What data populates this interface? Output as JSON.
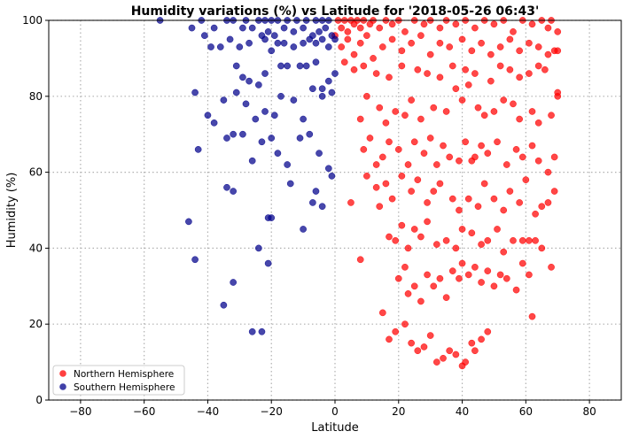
{
  "chart_data": {
    "type": "scatter",
    "title": "Humidity variations (%) vs Latitude for '2018-05-26 06:43'",
    "xlabel": "Latitude",
    "ylabel": "Humidity (%)",
    "xlim": [
      -90,
      90
    ],
    "ylim": [
      0,
      100
    ],
    "xticks": [
      -80,
      -60,
      -40,
      -20,
      0,
      20,
      40,
      60,
      80
    ],
    "yticks": [
      0,
      20,
      40,
      60,
      80,
      100
    ],
    "grid": "dotted",
    "legend_position": "lower-left",
    "series": [
      {
        "name": "Northern Hemisphere",
        "color": "#ff0000",
        "points": [
          [
            1,
            100
          ],
          [
            2,
            98
          ],
          [
            3,
            100
          ],
          [
            4,
            97
          ],
          [
            5,
            100
          ],
          [
            6,
            99
          ],
          [
            7,
            100
          ],
          [
            8,
            98
          ],
          [
            9,
            100
          ],
          [
            11,
            99
          ],
          [
            12,
            100
          ],
          [
            14,
            98
          ],
          [
            16,
            100
          ],
          [
            18,
            99
          ],
          [
            20,
            100
          ],
          [
            22,
            97
          ],
          [
            25,
            100
          ],
          [
            28,
            99
          ],
          [
            30,
            100
          ],
          [
            33,
            98
          ],
          [
            35,
            100
          ],
          [
            38,
            99
          ],
          [
            41,
            100
          ],
          [
            44,
            98
          ],
          [
            47,
            100
          ],
          [
            50,
            99
          ],
          [
            53,
            100
          ],
          [
            56,
            97
          ],
          [
            59,
            100
          ],
          [
            62,
            99
          ],
          [
            65,
            100
          ],
          [
            67,
            98
          ],
          [
            68,
            100
          ],
          [
            70,
            97
          ],
          [
            0,
            96
          ],
          [
            2,
            93
          ],
          [
            4,
            95
          ],
          [
            6,
            91
          ],
          [
            8,
            94
          ],
          [
            10,
            96
          ],
          [
            12,
            90
          ],
          [
            15,
            93
          ],
          [
            18,
            95
          ],
          [
            21,
            92
          ],
          [
            24,
            94
          ],
          [
            27,
            96
          ],
          [
            30,
            91
          ],
          [
            33,
            94
          ],
          [
            36,
            93
          ],
          [
            40,
            95
          ],
          [
            43,
            92
          ],
          [
            46,
            94
          ],
          [
            49,
            91
          ],
          [
            52,
            93
          ],
          [
            55,
            95
          ],
          [
            58,
            92
          ],
          [
            61,
            94
          ],
          [
            64,
            93
          ],
          [
            67,
            91
          ],
          [
            69,
            92
          ],
          [
            70,
            92
          ],
          [
            3,
            89
          ],
          [
            6,
            87
          ],
          [
            9,
            88
          ],
          [
            13,
            86
          ],
          [
            17,
            85
          ],
          [
            21,
            88
          ],
          [
            26,
            87
          ],
          [
            29,
            86
          ],
          [
            33,
            85
          ],
          [
            37,
            88
          ],
          [
            41,
            87
          ],
          [
            44,
            86
          ],
          [
            49,
            84
          ],
          [
            52,
            88
          ],
          [
            55,
            87
          ],
          [
            58,
            85
          ],
          [
            61,
            86
          ],
          [
            64,
            88
          ],
          [
            66,
            87
          ],
          [
            8,
            74
          ],
          [
            10,
            80
          ],
          [
            14,
            77
          ],
          [
            16,
            73
          ],
          [
            19,
            76
          ],
          [
            22,
            75
          ],
          [
            24,
            79
          ],
          [
            27,
            74
          ],
          [
            31,
            77
          ],
          [
            35,
            76
          ],
          [
            38,
            82
          ],
          [
            40,
            79
          ],
          [
            42,
            83
          ],
          [
            45,
            77
          ],
          [
            47,
            75
          ],
          [
            50,
            76
          ],
          [
            53,
            79
          ],
          [
            56,
            78
          ],
          [
            58,
            74
          ],
          [
            62,
            76
          ],
          [
            64,
            73
          ],
          [
            68,
            75
          ],
          [
            70,
            80
          ],
          [
            70,
            81
          ],
          [
            9,
            66
          ],
          [
            11,
            69
          ],
          [
            13,
            62
          ],
          [
            15,
            64
          ],
          [
            17,
            68
          ],
          [
            20,
            66
          ],
          [
            23,
            62
          ],
          [
            25,
            68
          ],
          [
            28,
            65
          ],
          [
            30,
            69
          ],
          [
            32,
            62
          ],
          [
            34,
            67
          ],
          [
            36,
            64
          ],
          [
            39,
            63
          ],
          [
            41,
            68
          ],
          [
            43,
            63
          ],
          [
            44,
            64
          ],
          [
            46,
            67
          ],
          [
            48,
            65
          ],
          [
            51,
            68
          ],
          [
            54,
            62
          ],
          [
            57,
            66
          ],
          [
            59,
            64
          ],
          [
            62,
            67
          ],
          [
            64,
            63
          ],
          [
            67,
            60
          ],
          [
            69,
            64
          ],
          [
            5,
            52
          ],
          [
            10,
            59
          ],
          [
            13,
            56
          ],
          [
            14,
            51
          ],
          [
            16,
            57
          ],
          [
            18,
            53
          ],
          [
            21,
            59
          ],
          [
            24,
            55
          ],
          [
            26,
            58
          ],
          [
            29,
            52
          ],
          [
            31,
            55
          ],
          [
            33,
            57
          ],
          [
            37,
            53
          ],
          [
            39,
            50
          ],
          [
            42,
            53
          ],
          [
            45,
            51
          ],
          [
            47,
            57
          ],
          [
            50,
            53
          ],
          [
            53,
            50
          ],
          [
            55,
            55
          ],
          [
            58,
            52
          ],
          [
            60,
            58
          ],
          [
            63,
            49
          ],
          [
            65,
            51
          ],
          [
            67,
            52
          ],
          [
            69,
            55
          ],
          [
            8,
            37
          ],
          [
            17,
            43
          ],
          [
            19,
            42
          ],
          [
            21,
            46
          ],
          [
            23,
            40
          ],
          [
            25,
            45
          ],
          [
            27,
            43
          ],
          [
            29,
            47
          ],
          [
            32,
            41
          ],
          [
            35,
            42
          ],
          [
            38,
            40
          ],
          [
            40,
            45
          ],
          [
            43,
            44
          ],
          [
            46,
            41
          ],
          [
            48,
            42
          ],
          [
            51,
            45
          ],
          [
            53,
            39
          ],
          [
            56,
            42
          ],
          [
            59,
            42
          ],
          [
            61,
            42
          ],
          [
            63,
            42
          ],
          [
            65,
            40
          ],
          [
            68,
            35
          ],
          [
            20,
            32
          ],
          [
            22,
            35
          ],
          [
            23,
            28
          ],
          [
            25,
            30
          ],
          [
            27,
            26
          ],
          [
            29,
            33
          ],
          [
            31,
            30
          ],
          [
            33,
            32
          ],
          [
            35,
            27
          ],
          [
            37,
            34
          ],
          [
            39,
            32
          ],
          [
            40,
            36
          ],
          [
            42,
            33
          ],
          [
            44,
            35
          ],
          [
            46,
            31
          ],
          [
            48,
            34
          ],
          [
            50,
            30
          ],
          [
            52,
            33
          ],
          [
            54,
            32
          ],
          [
            57,
            29
          ],
          [
            59,
            36
          ],
          [
            61,
            33
          ],
          [
            62,
            22
          ],
          [
            15,
            23
          ],
          [
            17,
            16
          ],
          [
            19,
            18
          ],
          [
            22,
            20
          ],
          [
            24,
            15
          ],
          [
            26,
            13
          ],
          [
            28,
            14
          ],
          [
            30,
            17
          ],
          [
            32,
            10
          ],
          [
            34,
            11
          ],
          [
            36,
            13
          ],
          [
            38,
            12
          ],
          [
            40,
            9
          ],
          [
            41,
            10
          ],
          [
            43,
            15
          ],
          [
            44,
            13
          ],
          [
            46,
            16
          ],
          [
            48,
            18
          ]
        ]
      },
      {
        "name": "Southern Hemisphere",
        "color": "#00008b",
        "points": [
          [
            -55,
            100
          ],
          [
            -42,
            100
          ],
          [
            -34,
            100
          ],
          [
            -32,
            100
          ],
          [
            -28,
            100
          ],
          [
            -24,
            100
          ],
          [
            -22,
            100
          ],
          [
            -20,
            100
          ],
          [
            -18,
            100
          ],
          [
            -15,
            100
          ],
          [
            -12,
            100
          ],
          [
            -9,
            100
          ],
          [
            -6,
            100
          ],
          [
            -4,
            100
          ],
          [
            -2,
            100
          ],
          [
            -45,
            98
          ],
          [
            -38,
            98
          ],
          [
            -29,
            98
          ],
          [
            -26,
            98
          ],
          [
            -23,
            96
          ],
          [
            -21,
            97
          ],
          [
            -19,
            96
          ],
          [
            -16,
            98
          ],
          [
            -13,
            97
          ],
          [
            -10,
            98
          ],
          [
            -7,
            96
          ],
          [
            -5,
            97
          ],
          [
            -3,
            98
          ],
          [
            -1,
            96
          ],
          [
            -41,
            96
          ],
          [
            -39,
            93
          ],
          [
            -33,
            95
          ],
          [
            -30,
            93
          ],
          [
            -27,
            94
          ],
          [
            -22,
            95
          ],
          [
            -20,
            92
          ],
          [
            -18,
            94
          ],
          [
            -16,
            94
          ],
          [
            -13,
            93
          ],
          [
            -10,
            94
          ],
          [
            -8,
            95
          ],
          [
            -6,
            94
          ],
          [
            -4,
            95
          ],
          [
            -2,
            93
          ],
          [
            0,
            95
          ],
          [
            -36,
            93
          ],
          [
            -31,
            88
          ],
          [
            -29,
            85
          ],
          [
            -27,
            84
          ],
          [
            -24,
            83
          ],
          [
            -22,
            86
          ],
          [
            -17,
            88
          ],
          [
            -15,
            88
          ],
          [
            -11,
            88
          ],
          [
            -9,
            88
          ],
          [
            -6,
            89
          ],
          [
            -4,
            82
          ],
          [
            -2,
            84
          ],
          [
            0,
            86
          ],
          [
            -44,
            81
          ],
          [
            -40,
            75
          ],
          [
            -35,
            79
          ],
          [
            -31,
            81
          ],
          [
            -28,
            78
          ],
          [
            -25,
            74
          ],
          [
            -22,
            76
          ],
          [
            -19,
            75
          ],
          [
            -17,
            80
          ],
          [
            -13,
            79
          ],
          [
            -10,
            74
          ],
          [
            -7,
            82
          ],
          [
            -4,
            80
          ],
          [
            -1,
            81
          ],
          [
            -43,
            66
          ],
          [
            -38,
            73
          ],
          [
            -34,
            69
          ],
          [
            -32,
            70
          ],
          [
            -29,
            70
          ],
          [
            -26,
            63
          ],
          [
            -23,
            68
          ],
          [
            -20,
            69
          ],
          [
            -18,
            65
          ],
          [
            -15,
            62
          ],
          [
            -11,
            69
          ],
          [
            -8,
            70
          ],
          [
            -5,
            65
          ],
          [
            -2,
            61
          ],
          [
            -46,
            47
          ],
          [
            -34,
            56
          ],
          [
            -32,
            55
          ],
          [
            -21,
            48
          ],
          [
            -20,
            48
          ],
          [
            -14,
            57
          ],
          [
            -10,
            45
          ],
          [
            -7,
            52
          ],
          [
            -6,
            55
          ],
          [
            -4,
            51
          ],
          [
            -1,
            59
          ],
          [
            -44,
            37
          ],
          [
            -35,
            25
          ],
          [
            -32,
            31
          ],
          [
            -24,
            40
          ],
          [
            -21,
            36
          ],
          [
            -26,
            18
          ],
          [
            -23,
            18
          ]
        ]
      }
    ]
  }
}
